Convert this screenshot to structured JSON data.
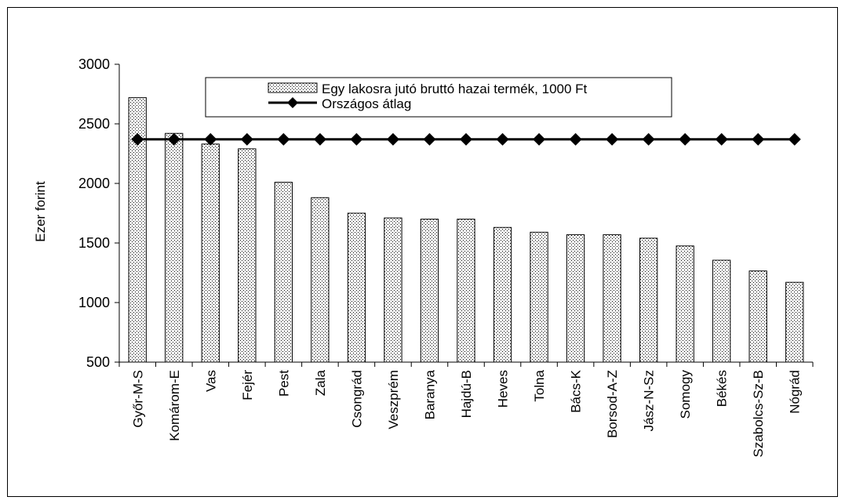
{
  "chart_data": {
    "type": "bar",
    "ylabel": "Ezer forint",
    "ylim": [
      500,
      3000
    ],
    "yticks": [
      500,
      1000,
      1500,
      2000,
      2500,
      3000
    ],
    "categories": [
      "Győr-M-S",
      "Komárom-E",
      "Vas",
      "Fejér",
      "Pest",
      "Zala",
      "Csongrád",
      "Veszprém",
      "Baranya",
      "Hajdú-B",
      "Heves",
      "Tolna",
      "Bács-K",
      "Borsod-A-Z",
      "Jász-N-Sz",
      "Somogy",
      "Békés",
      "Szabolcs-Sz-B",
      "Nógrád"
    ],
    "series": [
      {
        "name": "Egy lakosra jutó bruttó hazai termék, 1000 Ft",
        "type": "bar",
        "values": [
          2720,
          2420,
          2330,
          2290,
          2010,
          1880,
          1750,
          1710,
          1700,
          1700,
          1630,
          1590,
          1570,
          1570,
          1540,
          1475,
          1355,
          1265,
          1170
        ]
      },
      {
        "name": "Országos átlag",
        "type": "line",
        "values": [
          2370,
          2370,
          2370,
          2370,
          2370,
          2370,
          2370,
          2370,
          2370,
          2370,
          2370,
          2370,
          2370,
          2370,
          2370,
          2370,
          2370,
          2370,
          2370
        ]
      }
    ],
    "grid": false,
    "legend": "top-center"
  }
}
